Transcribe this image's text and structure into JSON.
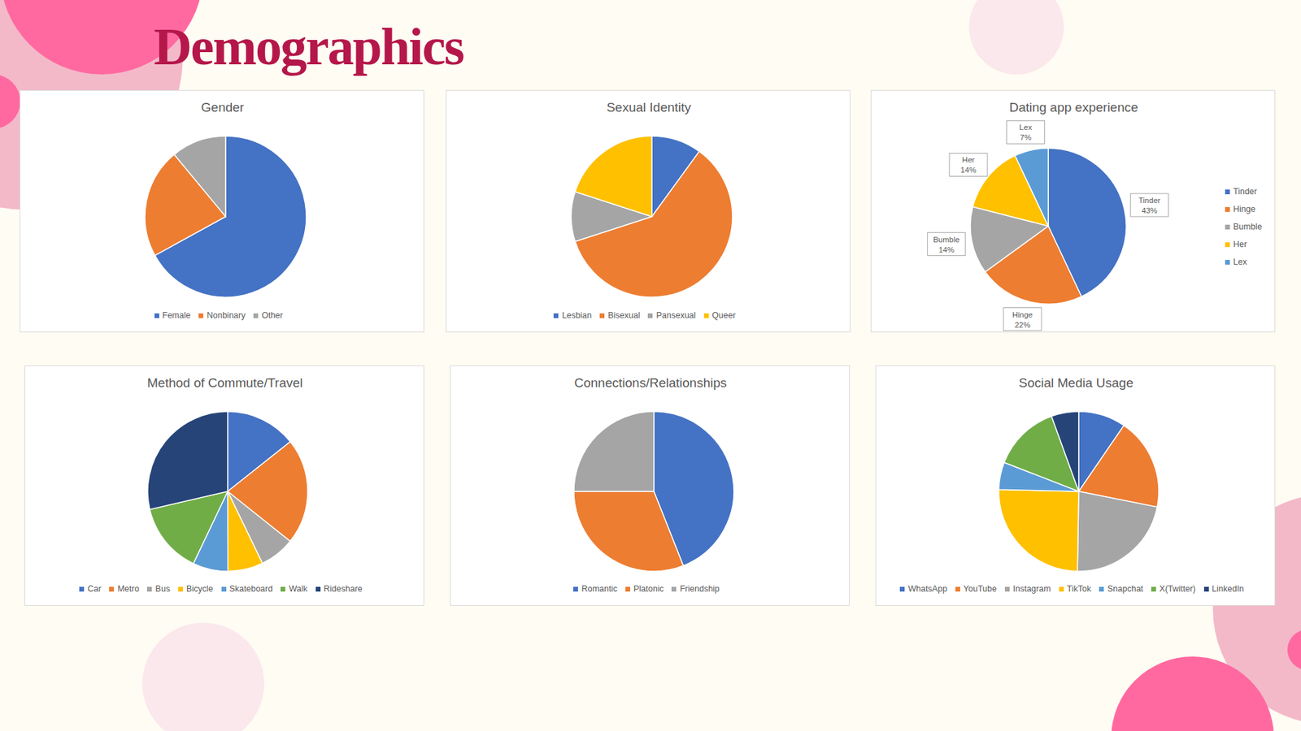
{
  "title": "Demographics",
  "chart_data": [
    {
      "type": "pie",
      "title": "Gender",
      "categories": [
        "Female",
        "Nonbinary",
        "Other"
      ],
      "values": [
        67,
        22,
        11
      ],
      "colors": [
        "#4472c4",
        "#ed7d31",
        "#a5a5a5"
      ],
      "legend": "bottom"
    },
    {
      "type": "pie",
      "title": "Sexual Identity",
      "categories": [
        "Lesbian",
        "Bisexual",
        "Pansexual",
        "Queer"
      ],
      "values": [
        10,
        60,
        10,
        20
      ],
      "colors": [
        "#4472c4",
        "#ed7d31",
        "#a5a5a5",
        "#ffc000"
      ],
      "legend": "bottom"
    },
    {
      "type": "pie",
      "title": "Dating app experience",
      "categories": [
        "Tinder",
        "Hinge",
        "Bumble",
        "Her",
        "Lex"
      ],
      "values": [
        43,
        22,
        14,
        14,
        7
      ],
      "value_labels": [
        "43%",
        "22%",
        "14%",
        "14%",
        "7%"
      ],
      "data_labels": true,
      "colors": [
        "#4472c4",
        "#ed7d31",
        "#a5a5a5",
        "#ffc000",
        "#5b9bd5"
      ],
      "legend": "right"
    },
    {
      "type": "pie",
      "title": "Method of Commute/Travel",
      "categories": [
        "Car",
        "Metro",
        "Bus",
        "Bicycle",
        "Skateboard",
        "Walk",
        "Rideshare"
      ],
      "values": [
        14.3,
        21.4,
        7.1,
        7.1,
        7.1,
        14.3,
        28.6
      ],
      "colors": [
        "#4472c4",
        "#ed7d31",
        "#a5a5a5",
        "#ffc000",
        "#5b9bd5",
        "#70ad47",
        "#264478"
      ],
      "legend": "bottom"
    },
    {
      "type": "pie",
      "title": "Connections/Relationships",
      "categories": [
        "Romantic",
        "Platonic",
        "Friendship"
      ],
      "values": [
        44,
        31,
        25
      ],
      "colors": [
        "#4472c4",
        "#ed7d31",
        "#a5a5a5"
      ],
      "legend": "bottom"
    },
    {
      "type": "pie",
      "title": "Social Media Usage",
      "categories": [
        "WhatsApp",
        "YouTube",
        "Instagram",
        "TikTok",
        "Snapchat",
        "X(Twitter)",
        "LinkedIn"
      ],
      "values": [
        9.5,
        18.5,
        22,
        25,
        5.5,
        13.5,
        5.5
      ],
      "colors": [
        "#4472c4",
        "#ed7d31",
        "#a5a5a5",
        "#ffc000",
        "#5b9bd5",
        "#70ad47",
        "#264478"
      ],
      "legend": "bottom"
    }
  ]
}
